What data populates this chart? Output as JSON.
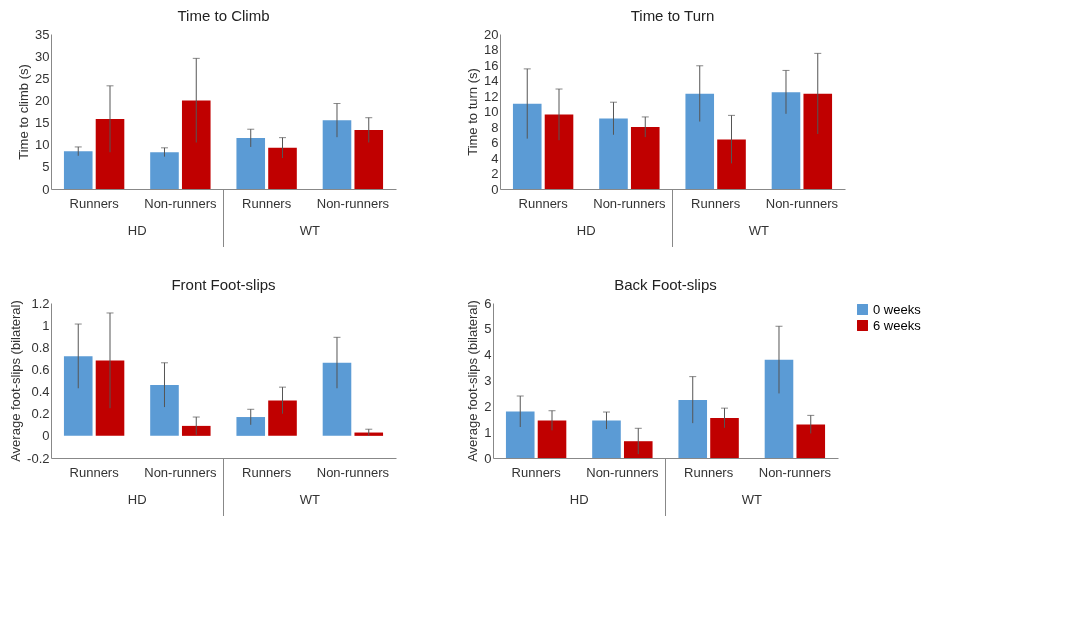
{
  "chart_data": [
    {
      "type": "bar",
      "title": "Time to Climb",
      "ylabel": "Time to climb (s)",
      "categories": [
        "Runners",
        "Non-runners",
        "Runners",
        "Non-runners"
      ],
      "annotations": [
        "HD",
        "WT"
      ],
      "ylim": [
        0,
        35
      ],
      "yticks": [
        0,
        5,
        10,
        15,
        20,
        25,
        30,
        35
      ],
      "grid": false,
      "legend": false,
      "series": [
        {
          "color": "#5b9bd5",
          "values": [
            8.5,
            8.3,
            11.5,
            15.5
          ],
          "errors": [
            1,
            1,
            2,
            3.8
          ]
        },
        {
          "color": "#c00000",
          "values": [
            15.8,
            20,
            9.3,
            13.3
          ],
          "errors": [
            7.5,
            9.5,
            2.3,
            2.8
          ]
        }
      ]
    },
    {
      "type": "bar",
      "title": "Time to Turn",
      "ylabel": "Time to turn (s)",
      "categories": [
        "Runners",
        "Non-runners",
        "Runners",
        "Non-runners"
      ],
      "annotations": [
        "HD",
        "WT"
      ],
      "ylim": [
        0,
        20
      ],
      "yticks": [
        0,
        2,
        4,
        6,
        8,
        10,
        12,
        14,
        16,
        18,
        20
      ],
      "grid": false,
      "legend": false,
      "series": [
        {
          "color": "#5b9bd5",
          "values": [
            11,
            9.1,
            12.3,
            12.5
          ],
          "errors": [
            4.5,
            2.1,
            3.6,
            2.8
          ]
        },
        {
          "color": "#c00000",
          "values": [
            9.6,
            8,
            6.4,
            12.3
          ],
          "errors": [
            3.3,
            1.3,
            3.1,
            5.2
          ]
        }
      ]
    },
    {
      "type": "bar",
      "title": "Front Foot-slips",
      "ylabel": "Average foot-slips (bilateral)",
      "categories": [
        "Runners",
        "Non-runners",
        "Runners",
        "Non-runners"
      ],
      "annotations": [
        "HD",
        "WT"
      ],
      "ylim": [
        -0.2,
        1.2
      ],
      "yticks": [
        -0.2,
        0,
        0.2,
        0.4,
        0.6,
        0.8,
        1,
        1.2
      ],
      "grid": false,
      "legend": false,
      "series": [
        {
          "color": "#5b9bd5",
          "values": [
            0.72,
            0.46,
            0.17,
            0.66
          ],
          "errors": [
            0.29,
            0.2,
            0.07,
            0.23
          ]
        },
        {
          "color": "#c00000",
          "values": [
            0.68,
            0.09,
            0.32,
            0.03
          ],
          "errors": [
            0.43,
            0.08,
            0.12,
            0.03
          ]
        }
      ]
    },
    {
      "type": "bar",
      "title": "Back Foot-slips",
      "ylabel": "Average foot-slips (bilateral)",
      "categories": [
        "Runners",
        "Non-runners",
        "Runners",
        "Non-runners"
      ],
      "annotations": [
        "HD",
        "WT"
      ],
      "ylim": [
        0,
        6
      ],
      "yticks": [
        0,
        1,
        2,
        3,
        4,
        5,
        6
      ],
      "grid": false,
      "legend": "right",
      "series": [
        {
          "name": "0 weeks",
          "color": "#5b9bd5",
          "values": [
            1.8,
            1.45,
            2.25,
            3.8
          ],
          "errors": [
            0.6,
            0.33,
            0.9,
            1.3
          ]
        },
        {
          "name": "6 weeks",
          "color": "#c00000",
          "values": [
            1.45,
            0.65,
            1.55,
            1.3
          ],
          "errors": [
            0.38,
            0.5,
            0.38,
            0.35
          ]
        }
      ]
    }
  ]
}
